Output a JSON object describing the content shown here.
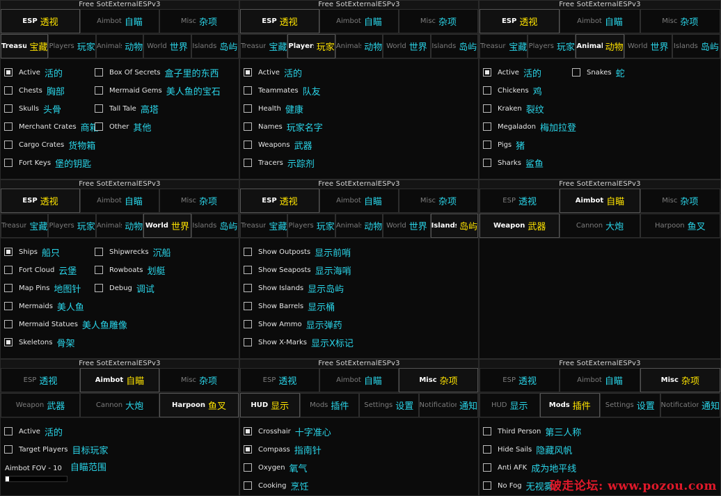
{
  "title": "Free SotExternalESPv3",
  "colors": {
    "accent_cn": "#2ad4e8",
    "active_cn": "#ffe400",
    "bg": "#0b0b0b",
    "watermark": "#e0192a"
  },
  "watermark": "破走论坛: www.pozou.com",
  "panels": [
    {
      "title": "Free SotExternalESPv3",
      "tabs1": [
        {
          "en": "ESP",
          "cn": "透视",
          "active": true
        },
        {
          "en": "Aimbot",
          "cn": "自瞄",
          "active": false
        },
        {
          "en": "Misc",
          "cn": "杂项",
          "active": false
        }
      ],
      "tabs2": [
        {
          "en": "Treasure",
          "cn": "宝藏",
          "active": true
        },
        {
          "en": "Players",
          "cn": "玩家",
          "active": false
        },
        {
          "en": "Animals",
          "cn": "动物",
          "active": false
        },
        {
          "en": "World",
          "cn": "世界",
          "active": false
        },
        {
          "en": "Islands",
          "cn": "岛屿",
          "active": false
        }
      ],
      "columns": [
        {
          "width": 130,
          "items": [
            {
              "en": "Active",
              "cn": "活的",
              "checked": true
            },
            {
              "en": "Chests",
              "cn": "胸部",
              "checked": false
            },
            {
              "en": "Skulls",
              "cn": "头骨",
              "checked": false
            },
            {
              "en": "Merchant Crates",
              "cn": "商箱",
              "checked": false
            },
            {
              "en": "Cargo Crates",
              "cn": "货物箱",
              "checked": false
            },
            {
              "en": "Fort Keys",
              "cn": "堡的钥匙",
              "checked": false
            }
          ]
        },
        {
          "width": 210,
          "items": [
            {
              "en": "Box Of Secrets",
              "cn": "盒子里的东西",
              "checked": false
            },
            {
              "en": "Mermaid Gems",
              "cn": "美人鱼的宝石",
              "checked": false
            },
            {
              "en": "Tall Tale",
              "cn": "高塔",
              "checked": false
            },
            {
              "en": "Other",
              "cn": "其他",
              "checked": false
            }
          ]
        }
      ]
    },
    {
      "title": "Free SotExternalESPv3",
      "tabs1": [
        {
          "en": "ESP",
          "cn": "透视",
          "active": true
        },
        {
          "en": "Aimbot",
          "cn": "自瞄",
          "active": false
        },
        {
          "en": "Misc",
          "cn": "杂项",
          "active": false
        }
      ],
      "tabs2": [
        {
          "en": "Treasure",
          "cn": "宝藏",
          "active": false
        },
        {
          "en": "Players",
          "cn": "玩家",
          "active": true
        },
        {
          "en": "Animals",
          "cn": "动物",
          "active": false
        },
        {
          "en": "World",
          "cn": "世界",
          "active": false
        },
        {
          "en": "Islands",
          "cn": "岛屿",
          "active": false
        }
      ],
      "columns": [
        {
          "width": 200,
          "items": [
            {
              "en": "Active",
              "cn": "活的",
              "checked": true
            },
            {
              "en": "Teammates",
              "cn": "队友",
              "checked": false
            },
            {
              "en": "Health",
              "cn": "健康",
              "checked": false
            },
            {
              "en": "Names",
              "cn": "玩家名字",
              "checked": false
            },
            {
              "en": "Weapons",
              "cn": "武器",
              "checked": false
            },
            {
              "en": "Tracers",
              "cn": "示踪剂",
              "checked": false
            }
          ]
        }
      ]
    },
    {
      "title": "Free SotExternalESPv3",
      "tabs1": [
        {
          "en": "ESP",
          "cn": "透视",
          "active": true
        },
        {
          "en": "Aimbot",
          "cn": "自瞄",
          "active": false
        },
        {
          "en": "Misc",
          "cn": "杂项",
          "active": false
        }
      ],
      "tabs2": [
        {
          "en": "Treasure",
          "cn": "宝藏",
          "active": false
        },
        {
          "en": "Players",
          "cn": "玩家",
          "active": false
        },
        {
          "en": "Animals",
          "cn": "动物",
          "active": true
        },
        {
          "en": "World",
          "cn": "世界",
          "active": false
        },
        {
          "en": "Islands",
          "cn": "岛屿",
          "active": false
        }
      ],
      "columns": [
        {
          "width": 128,
          "items": [
            {
              "en": "Active",
              "cn": "活的",
              "checked": true
            },
            {
              "en": "Chickens",
              "cn": "鸡",
              "checked": false
            },
            {
              "en": "Kraken",
              "cn": "裂纹",
              "checked": false
            },
            {
              "en": "Megaladon",
              "cn": "梅加拉登",
              "checked": false
            },
            {
              "en": "Pigs",
              "cn": "猪",
              "checked": false
            },
            {
              "en": "Sharks",
              "cn": "鲨鱼",
              "checked": false
            }
          ]
        },
        {
          "width": 150,
          "items": [
            {
              "en": "Snakes",
              "cn": "蛇",
              "checked": false
            }
          ]
        }
      ]
    },
    {
      "title": "Free SotExternalESPv3",
      "tabs1": [
        {
          "en": "ESP",
          "cn": "透视",
          "active": true
        },
        {
          "en": "Aimbot",
          "cn": "自瞄",
          "active": false
        },
        {
          "en": "Misc",
          "cn": "杂项",
          "active": false
        }
      ],
      "tabs2": [
        {
          "en": "Treasure",
          "cn": "宝藏",
          "active": false
        },
        {
          "en": "Players",
          "cn": "玩家",
          "active": false
        },
        {
          "en": "Animals",
          "cn": "动物",
          "active": false
        },
        {
          "en": "World",
          "cn": "世界",
          "active": true
        },
        {
          "en": "Islands",
          "cn": "岛屿",
          "active": false
        }
      ],
      "columns": [
        {
          "width": 130,
          "items": [
            {
              "en": "Ships",
              "cn": "船只",
              "checked": true
            },
            {
              "en": "Fort Cloud",
              "cn": "云堡",
              "checked": false
            },
            {
              "en": "Map Pins",
              "cn": "地图针",
              "checked": false
            },
            {
              "en": "Mermaids",
              "cn": "美人鱼",
              "checked": false
            },
            {
              "en": "Mermaid Statues",
              "cn": "美人鱼雕像",
              "checked": false
            },
            {
              "en": "Skeletons",
              "cn": "骨架",
              "checked": true
            }
          ]
        },
        {
          "width": 180,
          "items": [
            {
              "en": "Shipwrecks",
              "cn": "沉船",
              "checked": false
            },
            {
              "en": "Rowboats",
              "cn": "划艇",
              "checked": false
            },
            {
              "en": "Debug",
              "cn": "调试",
              "checked": false
            }
          ]
        }
      ]
    },
    {
      "title": "Free SotExternalESPv3",
      "tabs1": [
        {
          "en": "ESP",
          "cn": "透视",
          "active": true
        },
        {
          "en": "Aimbot",
          "cn": "自瞄",
          "active": false
        },
        {
          "en": "Misc",
          "cn": "杂项",
          "active": false
        }
      ],
      "tabs2": [
        {
          "en": "Treasure",
          "cn": "宝藏",
          "active": false
        },
        {
          "en": "Players",
          "cn": "玩家",
          "active": false
        },
        {
          "en": "Animals",
          "cn": "动物",
          "active": false
        },
        {
          "en": "World",
          "cn": "世界",
          "active": false
        },
        {
          "en": "Islands",
          "cn": "岛屿",
          "active": true
        }
      ],
      "columns": [
        {
          "width": 220,
          "items": [
            {
              "en": "Show Outposts",
              "cn": "显示前哨",
              "checked": false
            },
            {
              "en": "Show Seaposts",
              "cn": "显示海哨",
              "checked": false
            },
            {
              "en": "Show Islands",
              "cn": "显示岛屿",
              "checked": false
            },
            {
              "en": "Show Barrels",
              "cn": "显示桶",
              "checked": false
            },
            {
              "en": "Show Ammo",
              "cn": "显示弹药",
              "checked": false
            },
            {
              "en": "Show X-Marks",
              "cn": "显示X标记",
              "checked": false
            }
          ]
        }
      ]
    },
    {
      "title": "Free SotExternalESPv3",
      "tabs1": [
        {
          "en": "ESP",
          "cn": "透视",
          "active": false
        },
        {
          "en": "Aimbot",
          "cn": "自瞄",
          "active": true
        },
        {
          "en": "Misc",
          "cn": "杂项",
          "active": false
        }
      ],
      "tabs2": [
        {
          "en": "Weapon",
          "cn": "武器",
          "active": true
        },
        {
          "en": "Cannon",
          "cn": "大炮",
          "active": false
        },
        {
          "en": "Harpoon",
          "cn": "鱼叉",
          "active": false
        }
      ],
      "columns": []
    },
    {
      "title": "Free SotExternalESPv3",
      "tabs1": [
        {
          "en": "ESP",
          "cn": "透视",
          "active": false
        },
        {
          "en": "Aimbot",
          "cn": "自瞄",
          "active": true
        },
        {
          "en": "Misc",
          "cn": "杂项",
          "active": false
        }
      ],
      "tabs2": [
        {
          "en": "Weapon",
          "cn": "武器",
          "active": false
        },
        {
          "en": "Cannon",
          "cn": "大炮",
          "active": false
        },
        {
          "en": "Harpoon",
          "cn": "鱼叉",
          "active": true
        }
      ],
      "columns": [
        {
          "width": 220,
          "items": [
            {
              "en": "Active",
              "cn": "活的",
              "checked": false
            },
            {
              "en": "Target Players",
              "cn": "目标玩家",
              "checked": false
            }
          ]
        }
      ],
      "slider": {
        "label": "Aimbot FOV - 10",
        "cn": "自瞄范围",
        "fraction": 0.06
      }
    },
    {
      "title": "Free SotExternalESPv3",
      "tabs1": [
        {
          "en": "ESP",
          "cn": "透视",
          "active": false
        },
        {
          "en": "Aimbot",
          "cn": "自瞄",
          "active": false
        },
        {
          "en": "Misc",
          "cn": "杂项",
          "active": true
        }
      ],
      "tabs2": [
        {
          "en": "HUD",
          "cn": "显示",
          "active": true
        },
        {
          "en": "Mods",
          "cn": "插件",
          "active": false
        },
        {
          "en": "Settings",
          "cn": "设置",
          "active": false
        },
        {
          "en": "Notifications",
          "cn": "通知",
          "active": false
        }
      ],
      "columns": [
        {
          "width": 220,
          "items": [
            {
              "en": "Crosshair",
              "cn": "十字准心",
              "checked": true
            },
            {
              "en": "Compass",
              "cn": "指南针",
              "checked": true
            },
            {
              "en": "Oxygen",
              "cn": "氧气",
              "checked": false
            },
            {
              "en": "Cooking",
              "cn": "烹饪",
              "checked": false
            }
          ]
        }
      ]
    },
    {
      "title": "Free SotExternalESPv3",
      "tabs1": [
        {
          "en": "ESP",
          "cn": "透视",
          "active": false
        },
        {
          "en": "Aimbot",
          "cn": "自瞄",
          "active": false
        },
        {
          "en": "Misc",
          "cn": "杂项",
          "active": true
        }
      ],
      "tabs2": [
        {
          "en": "HUD",
          "cn": "显示",
          "active": false
        },
        {
          "en": "Mods",
          "cn": "插件",
          "active": true
        },
        {
          "en": "Settings",
          "cn": "设置",
          "active": false
        },
        {
          "en": "Notifications",
          "cn": "通知",
          "active": false
        }
      ],
      "columns": [
        {
          "width": 220,
          "items": [
            {
              "en": "Third Person",
              "cn": "第三人称",
              "checked": false
            },
            {
              "en": "Hide Sails",
              "cn": "隐藏风帆",
              "checked": false
            },
            {
              "en": "Anti AFK",
              "cn": "成为地平线",
              "checked": false
            },
            {
              "en": "No Fog",
              "cn": "无视雾",
              "checked": false
            }
          ]
        }
      ]
    }
  ]
}
